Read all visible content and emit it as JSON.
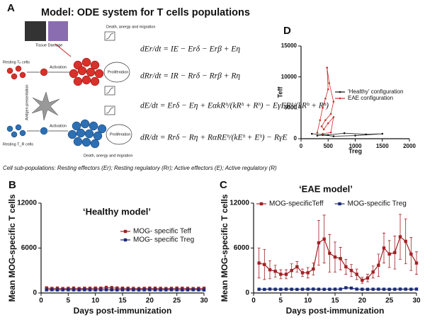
{
  "panel_a": {
    "label": "A",
    "title": "Model: ODE system for T cells populations",
    "diagram_labels": {
      "tissue": "Tissue Damage",
      "death_top": "Death, anergy and migration",
      "resting_e": "Resting Tₑ cells",
      "activation_top": "Activation",
      "antigen": "Antigen presentation",
      "prolif_top": "Proliferation",
      "resting_r": "Resting T_R cells",
      "activation_bottom": "Activation",
      "prolif_bottom": "Proliferation",
      "death_bottom": "Death, anergy and migration"
    },
    "equations": [
      "dEr/dt = IE − Erδ − Erβ + Eη",
      "dRr/dt = IR − Rrδ − Rrβ + Rη",
      "dE/dt = Erδ − Eη + EαkRʰ/(kRʰ + Rʰ) − EγERʰ/(kRʰ + Rʰ)",
      "dR/dt = Rrδ − Rη + RαREʰ/(kEʰ + Eʰ) − RγE"
    ],
    "caption": "Cell sub-populations: Resting effectors (Er); Resting regulatory (Rr); Active effectors (E); Active regulatory (R)"
  },
  "chart_data": [
    {
      "type": "line",
      "label": "B",
      "title": "‘Healthy model’",
      "x_label": "Days post-immunization",
      "y_label": "Mean MOG-specific T cells",
      "x": [
        1,
        2,
        3,
        4,
        5,
        6,
        7,
        8,
        9,
        10,
        11,
        12,
        13,
        14,
        15,
        16,
        17,
        18,
        19,
        20,
        21,
        22,
        23,
        24,
        25,
        26,
        27,
        28,
        29,
        30
      ],
      "series": [
        {
          "name": "MOG- specific Teff",
          "color": "#a31f24",
          "values": [
            650,
            600,
            620,
            580,
            600,
            620,
            590,
            610,
            600,
            630,
            620,
            700,
            680,
            640,
            620,
            610,
            600,
            590,
            600,
            620,
            610,
            600,
            590,
            600,
            620,
            610,
            600,
            590,
            600,
            610
          ],
          "errors": [
            200,
            180,
            200,
            180,
            190,
            200,
            180,
            190,
            200,
            200,
            190,
            220,
            210,
            200,
            190,
            190,
            180,
            180,
            190,
            200,
            190,
            190,
            180,
            190,
            200,
            190,
            190,
            180,
            190,
            190
          ]
        },
        {
          "name": "MOG- specific Treg",
          "color": "#1c2a78",
          "values": [
            420,
            430,
            410,
            420,
            430,
            420,
            410,
            430,
            420,
            410,
            420,
            430,
            420,
            410,
            420,
            430,
            420,
            410,
            420,
            430,
            420,
            410,
            420,
            430,
            420,
            410,
            420,
            430,
            420,
            410
          ]
        }
      ],
      "xlim": [
        0,
        30
      ],
      "xticks": [
        0,
        5,
        10,
        15,
        20,
        25,
        30
      ],
      "ylim": [
        0,
        12000
      ],
      "yticks": [
        0,
        6000,
        12000
      ],
      "legend": "center right",
      "marker": "square"
    },
    {
      "type": "line",
      "label": "C",
      "title": "‘EAE model’",
      "x_label": "Days post-immunization",
      "y_label": "Mean MOG-specific T cells",
      "x": [
        1,
        2,
        3,
        4,
        5,
        6,
        7,
        8,
        9,
        10,
        11,
        12,
        13,
        14,
        15,
        16,
        17,
        18,
        19,
        20,
        21,
        22,
        23,
        24,
        25,
        26,
        27,
        28,
        29,
        30
      ],
      "series": [
        {
          "name": "MOG-specificTeff",
          "color": "#a31f24",
          "values": [
            4000,
            3800,
            3100,
            2900,
            2500,
            2500,
            3000,
            3500,
            2700,
            2700,
            3200,
            6700,
            7200,
            5300,
            4800,
            4600,
            3500,
            3000,
            2500,
            1700,
            2000,
            2800,
            3700,
            6000,
            5200,
            5400,
            7500,
            6900,
            5200,
            4000
          ],
          "errors": [
            2000,
            2000,
            1200,
            800,
            600,
            600,
            900,
            700,
            500,
            700,
            800,
            3000,
            3200,
            2500,
            2000,
            1500,
            1000,
            800,
            700,
            400,
            500,
            800,
            1500,
            2000,
            1800,
            2200,
            3000,
            3000,
            2200,
            1500
          ]
        },
        {
          "name": "MOG-specific Treg",
          "color": "#1c2a78",
          "values": [
            500,
            480,
            520,
            500,
            490,
            510,
            500,
            480,
            500,
            510,
            520,
            500,
            490,
            500,
            510,
            520,
            700,
            650,
            520,
            500,
            490,
            500,
            510,
            500,
            490,
            500,
            520,
            510,
            500,
            520
          ]
        }
      ],
      "xlim": [
        0,
        30
      ],
      "xticks": [
        0,
        5,
        10,
        15,
        20,
        25,
        30
      ],
      "ylim": [
        0,
        12000
      ],
      "yticks": [
        0,
        6000,
        12000
      ],
      "legend": "top",
      "marker": "square"
    },
    {
      "type": "line",
      "label": "D",
      "x_label": "Treg",
      "y_label": "Teff",
      "series": [
        {
          "name": "‘Healthy’ configuration",
          "color": "#111111",
          "x": [
            200,
            500,
            800,
            1200,
            1500,
            1000,
            600,
            400,
            300
          ],
          "values": [
            800,
            600,
            900,
            700,
            800,
            500,
            400,
            600,
            500
          ]
        },
        {
          "name": "EAE configuration",
          "color": "#d42a2a",
          "x": [
            300,
            350,
            400,
            450,
            500,
            480,
            520,
            600,
            550,
            450,
            380,
            420,
            500,
            600,
            550,
            400
          ],
          "values": [
            1000,
            3000,
            5000,
            6500,
            8000,
            11500,
            9000,
            6000,
            4000,
            3000,
            2000,
            1500,
            2500,
            3500,
            1000,
            800
          ]
        }
      ],
      "xlim": [
        0,
        2000
      ],
      "xticks": [
        0,
        500,
        1000,
        1500,
        2000
      ],
      "ylim": [
        0,
        15000
      ],
      "yticks": [
        0,
        5000,
        10000,
        15000
      ],
      "legend": "upper right",
      "marker": "dot"
    }
  ]
}
